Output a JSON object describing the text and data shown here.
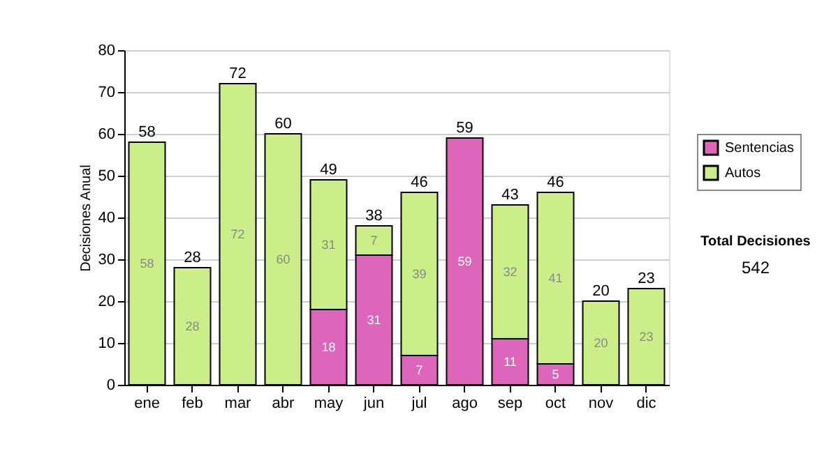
{
  "chart_data": {
    "type": "bar",
    "stacked": true,
    "ylabel": "Decisiones Anual",
    "categories": [
      "ene",
      "feb",
      "mar",
      "abr",
      "may",
      "jun",
      "jul",
      "ago",
      "sep",
      "oct",
      "nov",
      "dic"
    ],
    "series": [
      {
        "name": "Sentencias",
        "color": "#dd66bb",
        "values": [
          null,
          null,
          null,
          null,
          18,
          31,
          7,
          59,
          11,
          5,
          null,
          null
        ]
      },
      {
        "name": "Autos",
        "color": "#ccee88",
        "values": [
          58,
          28,
          72,
          60,
          31,
          7,
          39,
          null,
          32,
          41,
          20,
          23
        ]
      }
    ],
    "totals": [
      "58",
      "28",
      "72",
      "60",
      "49",
      "38",
      "46",
      "59",
      "43",
      "46",
      "20",
      "23"
    ],
    "data_labels": true,
    "ylim": [
      0,
      80
    ],
    "yticks": [
      0,
      10,
      20,
      30,
      40,
      50,
      60,
      70,
      80
    ],
    "grid": "y",
    "legend": "right",
    "annotations": [
      "Total Decisiones",
      "542"
    ]
  }
}
